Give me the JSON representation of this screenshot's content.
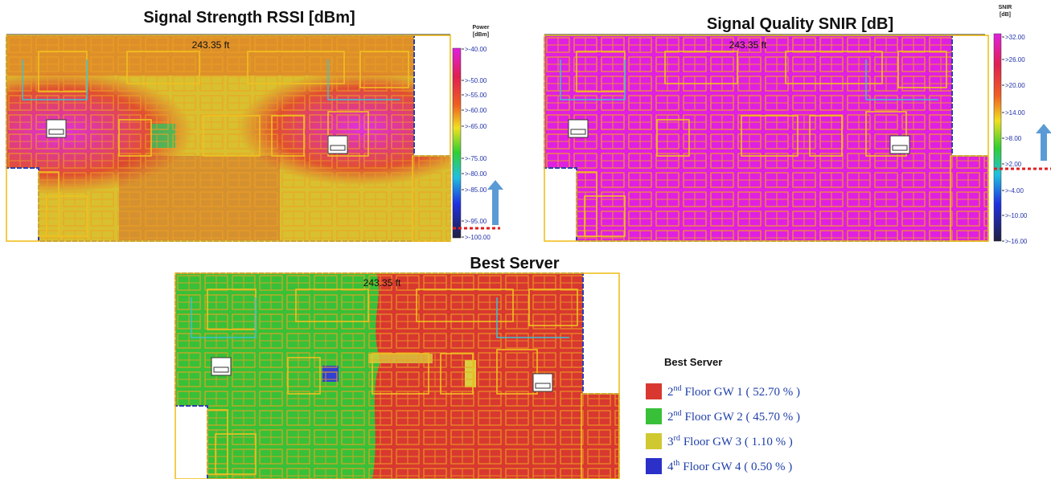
{
  "panels": [
    {
      "title": "Signal Strength RSSI [dBm]",
      "scale_label": "243.35 ft",
      "colorbar": {
        "title": "Power",
        "unit": "[dBm]",
        "labels": [
          ">-40.00",
          ">-50.00",
          ">-55.00",
          ">-60.00",
          ">-65.00",
          ">-75.00",
          ">-80.00",
          ">-85.00",
          ">-95.00",
          ">-100.00"
        ]
      }
    },
    {
      "title": "Signal Quality SNIR [dB]",
      "scale_label": "243.35 ft",
      "colorbar": {
        "title": "SNIR",
        "unit": "[dB]",
        "labels": [
          ">32.00",
          ">26.00",
          ">20.00",
          ">14.00",
          ">8.00",
          ">2.00",
          ">-4.00",
          ">-10.00",
          ">-16.00"
        ]
      }
    }
  ],
  "best_server": {
    "title": "Best Server",
    "scale_label": "243.35 ft",
    "legend": {
      "title": "Best Server",
      "entries": [
        {
          "floor": "2",
          "suffix": "nd",
          "text": "Floor GW 1 ( 52.70 % )"
        },
        {
          "floor": "2",
          "suffix": "nd",
          "text": "Floor GW 2 ( 45.70 % )"
        },
        {
          "floor": "3",
          "suffix": "rd",
          "text": "Floor GW 3 ( 1.10 % )"
        },
        {
          "floor": "4",
          "suffix": "th",
          "text": "Floor GW 4 ( 0.50 % )"
        }
      ]
    }
  }
}
